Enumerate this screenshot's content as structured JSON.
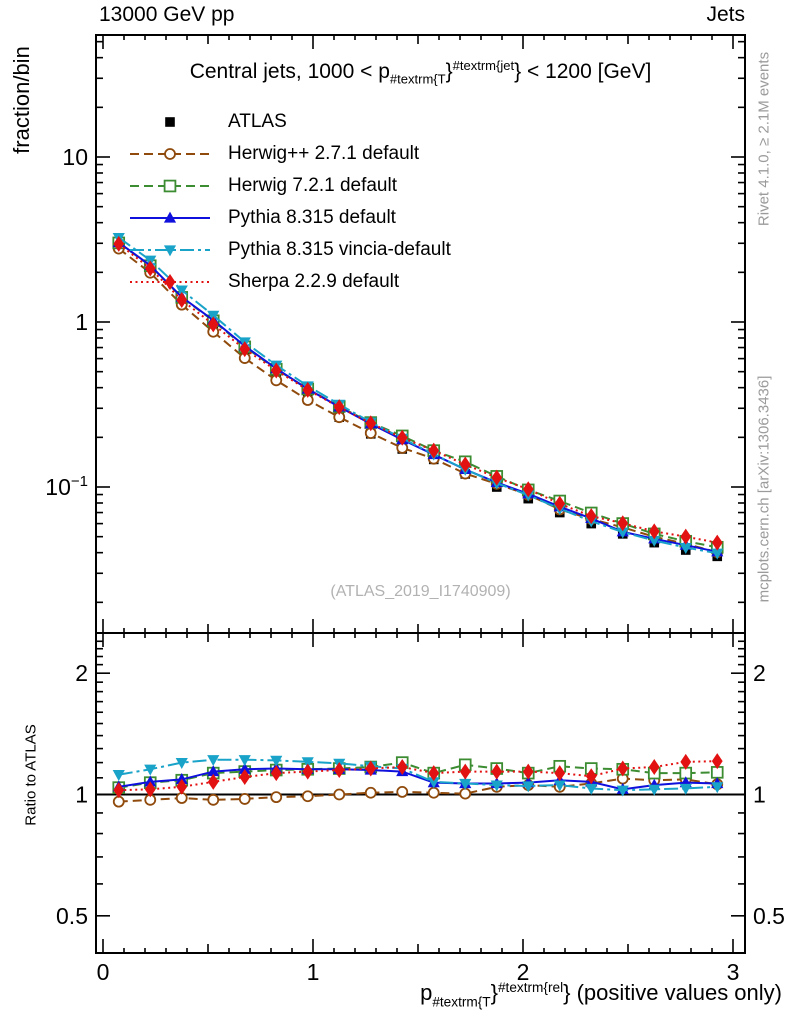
{
  "header": {
    "left": "13000 GeV pp",
    "right": "Jets"
  },
  "panel_title": {
    "prefix": "Central jets, 1000 < p",
    "sub": "#textrm{T",
    "brace": "}",
    "sup": "#textrm{jet",
    "suffix": "} < 1200 [GeV]"
  },
  "axes": {
    "main_y_title": "fraction/bin",
    "ratio_y_title": "Ratio to ATLAS"
  },
  "x_label": {
    "p": "p",
    "sub": "#textrm{T",
    "brace": "}",
    "sup": "#textrm{rel",
    "suffix": "} (positive values only)"
  },
  "side_notes": {
    "top": "Rivet 4.1.0, ≥ 2.1M events",
    "bottom": "mcplots.cern.ch [arXiv:1306.3436]"
  },
  "watermark": "(ATLAS_2019_I1740909)",
  "chart_data": {
    "type": "line",
    "title": "Central jets, 1000 < pT^jet < 1200 [GeV]",
    "xlabel": "pT^rel (positive values only)",
    "ylabel": "fraction/bin",
    "ratio_label": "Ratio to ATLAS",
    "bin_width": 0.15,
    "x": [
      0.075,
      0.225,
      0.375,
      0.525,
      0.675,
      0.825,
      0.975,
      1.125,
      1.275,
      1.425,
      1.575,
      1.725,
      1.875,
      2.025,
      2.175,
      2.325,
      2.475,
      2.625,
      2.775,
      2.925
    ],
    "series": [
      {
        "name": "ATLAS",
        "color": "#000000",
        "marker": "square",
        "fill": "filled",
        "line": "none",
        "values": [
          2.9,
          2.05,
          1.3,
          0.9,
          0.62,
          0.45,
          0.34,
          0.265,
          0.21,
          0.17,
          0.147,
          0.12,
          0.1,
          0.085,
          0.07,
          0.06,
          0.052,
          0.046,
          0.0415,
          0.038
        ]
      },
      {
        "name": "Herwig++ 2.7.1 default",
        "color": "#8f4a0c",
        "marker": "circle",
        "fill": "open",
        "line": "dashed",
        "ratio_to_atlas": [
          0.96,
          0.97,
          0.98,
          0.97,
          0.975,
          0.985,
          0.99,
          1.0,
          1.01,
          1.015,
          1.01,
          1.005,
          1.045,
          1.055,
          1.045,
          1.065,
          1.095,
          1.085,
          1.09,
          1.06
        ]
      },
      {
        "name": "Herwig 7.2.1 default",
        "color": "#3c8c32",
        "marker": "square",
        "fill": "open",
        "line": "dashed",
        "ratio_to_atlas": [
          1.04,
          1.07,
          1.085,
          1.13,
          1.14,
          1.15,
          1.155,
          1.16,
          1.17,
          1.2,
          1.13,
          1.185,
          1.16,
          1.13,
          1.175,
          1.16,
          1.155,
          1.13,
          1.13,
          1.135
        ]
      },
      {
        "name": "Pythia 8.315 default",
        "color": "#1010dd",
        "marker": "triangle-up",
        "fill": "filled",
        "line": "solid",
        "ratio_to_atlas": [
          1.045,
          1.075,
          1.09,
          1.14,
          1.155,
          1.16,
          1.155,
          1.155,
          1.15,
          1.14,
          1.07,
          1.065,
          1.065,
          1.07,
          1.085,
          1.075,
          1.03,
          1.055,
          1.07,
          1.065
        ]
      },
      {
        "name": "Pythia 8.315 vincia-default",
        "color": "#19a3c9",
        "marker": "triangle-down",
        "fill": "filled",
        "line": "dashdot",
        "ratio_to_atlas": [
          1.12,
          1.155,
          1.2,
          1.22,
          1.22,
          1.215,
          1.205,
          1.195,
          1.175,
          1.16,
          1.075,
          1.065,
          1.055,
          1.05,
          1.055,
          1.035,
          1.025,
          1.03,
          1.035,
          1.045
        ]
      },
      {
        "name": "Sherpa 2.2.9 default",
        "color": "#e31212",
        "marker": "diamond",
        "fill": "filled",
        "line": "dotted",
        "ratio_to_atlas": [
          1.025,
          1.03,
          1.045,
          1.075,
          1.105,
          1.13,
          1.14,
          1.15,
          1.16,
          1.17,
          1.13,
          1.14,
          1.14,
          1.14,
          1.13,
          1.11,
          1.16,
          1.17,
          1.205,
          1.21
        ]
      }
    ],
    "main_axis": {
      "scale": "log",
      "range": [
        0.013,
        55
      ],
      "ticks": [
        {
          "v": 10,
          "base": "10",
          "exp": ""
        },
        {
          "v": 1,
          "base": "1",
          "exp": ""
        },
        {
          "v": 0.1,
          "base": "10",
          "exp": "−1"
        }
      ]
    },
    "ratio_axis": {
      "scale": "log",
      "range": [
        0.404,
        2.52
      ],
      "reference": 1,
      "ticks": [
        {
          "v": 2,
          "label": "2"
        },
        {
          "v": 1,
          "label": "1"
        },
        {
          "v": 0.5,
          "label": "0.5"
        }
      ]
    },
    "x_axis": {
      "range": [
        -0.033,
        3.057
      ],
      "ticks": [
        {
          "v": 0,
          "label": "0"
        },
        {
          "v": 1,
          "label": "1"
        },
        {
          "v": 2,
          "label": "2"
        },
        {
          "v": 3,
          "label": "3"
        }
      ],
      "minor_step": 0.1,
      "medium_step": 0.5
    },
    "legend_position": "top-left",
    "grid": false
  }
}
